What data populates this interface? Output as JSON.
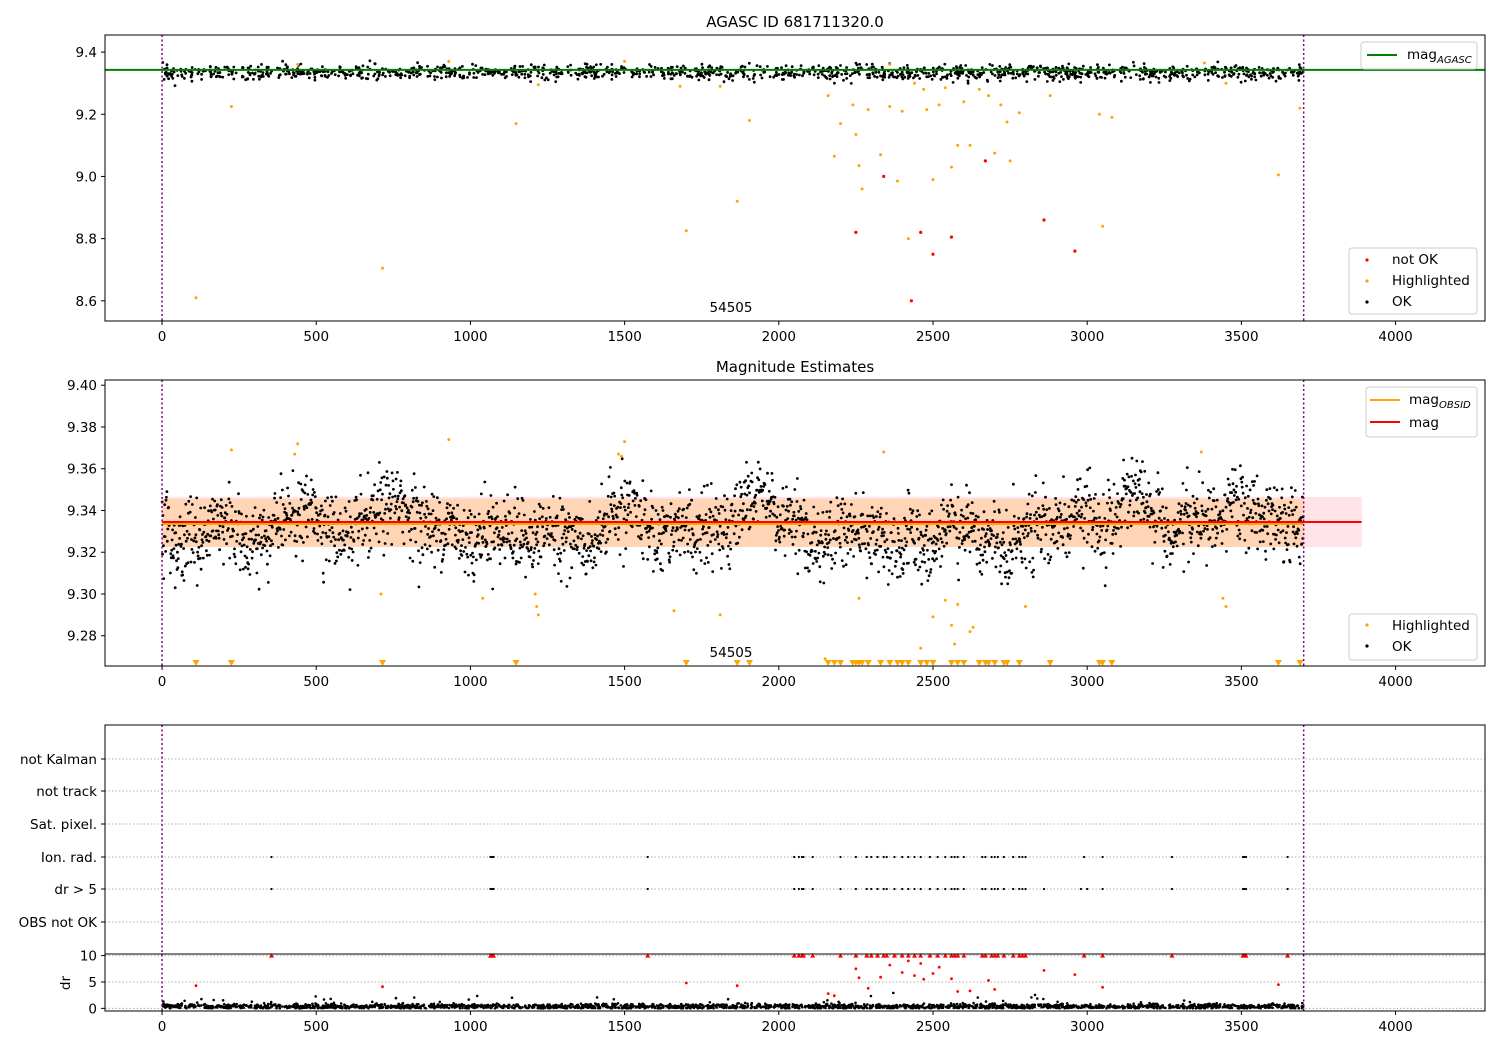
{
  "chart_data": [
    {
      "type": "scatter",
      "title": "AGASC ID 681711320.0",
      "xlim": [
        -185,
        4290
      ],
      "ylim": [
        8.535,
        9.455
      ],
      "xticks": [
        0,
        500,
        1000,
        1500,
        2000,
        2500,
        3000,
        3500,
        4000
      ],
      "yticks": [
        8.6,
        8.8,
        9.0,
        9.2,
        9.4
      ],
      "grid": false,
      "obsid_label": "54505",
      "vlines": [
        0,
        3702
      ],
      "reference_line": {
        "name": "mag_AGASC",
        "y": 9.343,
        "color": "#008000"
      },
      "legends": [
        {
          "position": "top-right",
          "entries": [
            {
              "label": "mag",
              "sub": "AGASC",
              "kind": "line",
              "color": "#008000"
            }
          ]
        },
        {
          "position": "bottom-right",
          "entries": [
            {
              "label": "not OK",
              "kind": "dot",
              "color": "#ff0000"
            },
            {
              "label": "Highlighted",
              "kind": "dot",
              "color": "#ffa500"
            },
            {
              "label": "OK",
              "kind": "dot",
              "color": "#000000"
            }
          ]
        }
      ],
      "series": [
        {
          "name": "OK",
          "color": "#000000",
          "mean": 9.334,
          "sd": 0.012,
          "x_range": [
            0,
            3702
          ],
          "count": 1400
        },
        {
          "name": "Highlighted",
          "color": "#ffa500",
          "points": [
            [
              110,
              8.61
            ],
            [
              225,
              9.225
            ],
            [
              715,
              8.705
            ],
            [
              1148,
              9.17
            ],
            [
              1700,
              8.825
            ],
            [
              1865,
              8.92
            ],
            [
              1905,
              9.18
            ],
            [
              2160,
              9.26
            ],
            [
              2180,
              9.065
            ],
            [
              2200,
              9.17
            ],
            [
              2240,
              9.23
            ],
            [
              2250,
              9.135
            ],
            [
              2260,
              9.035
            ],
            [
              2270,
              8.96
            ],
            [
              2290,
              9.215
            ],
            [
              2330,
              9.07
            ],
            [
              2360,
              9.225
            ],
            [
              2385,
              8.985
            ],
            [
              2400,
              9.21
            ],
            [
              2420,
              8.8
            ],
            [
              2440,
              9.3
            ],
            [
              2470,
              9.28
            ],
            [
              2480,
              9.215
            ],
            [
              2500,
              8.99
            ],
            [
              2520,
              9.23
            ],
            [
              2540,
              9.285
            ],
            [
              2560,
              9.03
            ],
            [
              2580,
              9.1
            ],
            [
              2600,
              9.24
            ],
            [
              2620,
              9.1
            ],
            [
              2650,
              9.28
            ],
            [
              2680,
              9.26
            ],
            [
              2700,
              9.075
            ],
            [
              2720,
              9.23
            ],
            [
              2740,
              9.175
            ],
            [
              2750,
              9.05
            ],
            [
              2780,
              9.205
            ],
            [
              2880,
              9.26
            ],
            [
              3040,
              9.2
            ],
            [
              3050,
              8.84
            ],
            [
              3080,
              9.19
            ],
            [
              3620,
              9.005
            ],
            [
              3690,
              9.22
            ],
            [
              440,
              9.36
            ],
            [
              930,
              9.37
            ],
            [
              1500,
              9.37
            ],
            [
              1220,
              9.295
            ],
            [
              1680,
              9.29
            ],
            [
              1810,
              9.29
            ],
            [
              2360,
              9.36
            ],
            [
              3380,
              9.365
            ],
            [
              3450,
              9.3
            ]
          ]
        },
        {
          "name": "not OK",
          "color": "#ff0000",
          "points": [
            [
              2250,
              8.82
            ],
            [
              2340,
              9.0
            ],
            [
              2430,
              8.6
            ],
            [
              2460,
              8.82
            ],
            [
              2500,
              8.75
            ],
            [
              2560,
              8.805
            ],
            [
              2670,
              9.05
            ],
            [
              2860,
              8.86
            ],
            [
              2960,
              8.76
            ]
          ]
        }
      ]
    },
    {
      "type": "scatter",
      "title": "Magnitude Estimates",
      "xlim": [
        -185,
        4290
      ],
      "ylim": [
        9.2655,
        9.4025
      ],
      "xticks": [
        0,
        500,
        1000,
        1500,
        2000,
        2500,
        3000,
        3500,
        4000
      ],
      "yticks": [
        9.28,
        9.3,
        9.32,
        9.34,
        9.36,
        9.38,
        9.4
      ],
      "grid": false,
      "obsid_label": "54505",
      "vlines": [
        0,
        3702
      ],
      "mag_band": {
        "mag": 9.3345,
        "lower": 9.3225,
        "upper": 9.3465,
        "x_end": 3890
      },
      "mag_obsid": {
        "y": 9.3335,
        "lower": 9.3225,
        "upper": 9.3455,
        "x_end": 3702
      },
      "legends": [
        {
          "position": "top-right",
          "entries": [
            {
              "label": "mag",
              "sub": "OBSID",
              "kind": "line",
              "color": "#ffa500"
            },
            {
              "label": "mag",
              "sub": "",
              "kind": "line",
              "color": "#ff0000"
            }
          ]
        },
        {
          "position": "bottom-right",
          "entries": [
            {
              "label": "Highlighted",
              "kind": "dot",
              "color": "#ffa500"
            },
            {
              "label": "OK",
              "kind": "dot",
              "color": "#000000"
            }
          ]
        }
      ],
      "series": [
        {
          "name": "OK",
          "color": "#000000",
          "mean": 9.334,
          "sd": 0.0115,
          "x_range": [
            0,
            3702
          ],
          "count": 2600
        },
        {
          "name": "Highlighted",
          "color": "#ffa500",
          "points": [
            [
              225,
              9.369
            ],
            [
              430,
              9.367
            ],
            [
              440,
              9.372
            ],
            [
              710,
              9.3
            ],
            [
              930,
              9.374
            ],
            [
              1040,
              9.298
            ],
            [
              1210,
              9.3
            ],
            [
              1215,
              9.294
            ],
            [
              1220,
              9.29
            ],
            [
              1480,
              9.367
            ],
            [
              1490,
              9.366
            ],
            [
              1500,
              9.373
            ],
            [
              1660,
              9.292
            ],
            [
              1810,
              9.29
            ],
            [
              2150,
              9.269
            ],
            [
              2340,
              9.368
            ],
            [
              2260,
              9.298
            ],
            [
              2460,
              9.274
            ],
            [
              2500,
              9.289
            ],
            [
              2540,
              9.297
            ],
            [
              2560,
              9.285
            ],
            [
              2570,
              9.276
            ],
            [
              2580,
              9.295
            ],
            [
              2620,
              9.282
            ],
            [
              2630,
              9.284
            ],
            [
              2800,
              9.294
            ],
            [
              3370,
              9.368
            ],
            [
              3440,
              9.298
            ],
            [
              3450,
              9.294
            ]
          ]
        },
        {
          "name": "below range",
          "color": "#ffa500",
          "x": [
            110,
            225,
            715,
            1148,
            1700,
            1865,
            1905,
            2160,
            2180,
            2200,
            2240,
            2250,
            2260,
            2270,
            2290,
            2330,
            2360,
            2385,
            2400,
            2420,
            2460,
            2480,
            2500,
            2560,
            2580,
            2600,
            2650,
            2670,
            2680,
            2700,
            2730,
            2740,
            2780,
            2880,
            3040,
            3050,
            3080,
            3620,
            3690
          ]
        }
      ]
    },
    {
      "type": "scatter",
      "title": "",
      "xlim": [
        -185,
        4290
      ],
      "xticks": [
        0,
        500,
        1000,
        1500,
        2000,
        2500,
        3000,
        3500,
        4000
      ],
      "vlines": [
        0,
        3702
      ],
      "flag_rows": [
        "not Kalman",
        "not track",
        "Sat. pixel.",
        "Ion. rad.",
        "dr > 5",
        "OBS not OK"
      ],
      "flag_points": {
        "Ion. rad.": [
          355,
          1065,
          1070,
          1075,
          1575,
          2050,
          2065,
          2075,
          2080,
          2110,
          2200,
          2250,
          2285,
          2300,
          2320,
          2340,
          2350,
          2375,
          2400,
          2420,
          2440,
          2460,
          2490,
          2515,
          2540,
          2560,
          2570,
          2580,
          2600,
          2660,
          2670,
          2690,
          2700,
          2710,
          2730,
          2760,
          2780,
          2790,
          2800,
          2990,
          3050,
          3275,
          3505,
          3510,
          3515,
          3650
        ],
        "dr > 5": [
          355,
          1065,
          1070,
          1075,
          1575,
          2050,
          2065,
          2075,
          2080,
          2110,
          2200,
          2250,
          2285,
          2300,
          2320,
          2340,
          2350,
          2375,
          2400,
          2420,
          2440,
          2460,
          2490,
          2515,
          2540,
          2560,
          2570,
          2580,
          2600,
          2660,
          2670,
          2690,
          2700,
          2710,
          2730,
          2760,
          2780,
          2790,
          2800,
          2860,
          2980,
          3000,
          3050,
          3275,
          3505,
          3510,
          3515,
          3650
        ]
      },
      "dr_panel": {
        "ylabel": "dr",
        "yticks": [
          0,
          5,
          10
        ],
        "ylim": [
          -0.5,
          10.3
        ],
        "clipped": [
          355,
          1065,
          1070,
          1075,
          1575,
          2050,
          2065,
          2075,
          2080,
          2110,
          2200,
          2250,
          2285,
          2300,
          2320,
          2340,
          2350,
          2375,
          2400,
          2420,
          2440,
          2460,
          2490,
          2515,
          2540,
          2560,
          2570,
          2580,
          2600,
          2660,
          2670,
          2690,
          2700,
          2710,
          2730,
          2760,
          2780,
          2790,
          2800,
          2990,
          3050,
          3275,
          3505,
          3510,
          3515,
          3650
        ],
        "red_points": [
          [
            110,
            4.3
          ],
          [
            715,
            4.1
          ],
          [
            1700,
            4.8
          ],
          [
            1865,
            4.3
          ],
          [
            2160,
            2.8
          ],
          [
            2180,
            2.4
          ],
          [
            2250,
            7.5
          ],
          [
            2260,
            5.8
          ],
          [
            2290,
            3.8
          ],
          [
            2330,
            5.9
          ],
          [
            2360,
            8.2
          ],
          [
            2400,
            6.8
          ],
          [
            2420,
            9.0
          ],
          [
            2440,
            6.2
          ],
          [
            2460,
            8.5
          ],
          [
            2470,
            5.5
          ],
          [
            2500,
            6.6
          ],
          [
            2520,
            7.8
          ],
          [
            2560,
            5.6
          ],
          [
            2580,
            3.2
          ],
          [
            2620,
            3.3
          ],
          [
            2680,
            5.3
          ],
          [
            2700,
            3.6
          ],
          [
            2860,
            7.2
          ],
          [
            2960,
            6.4
          ],
          [
            3050,
            4.0
          ],
          [
            3620,
            4.5
          ]
        ],
        "black": {
          "mean": 0.35,
          "sd": 0.25,
          "count": 2200
        }
      }
    }
  ]
}
